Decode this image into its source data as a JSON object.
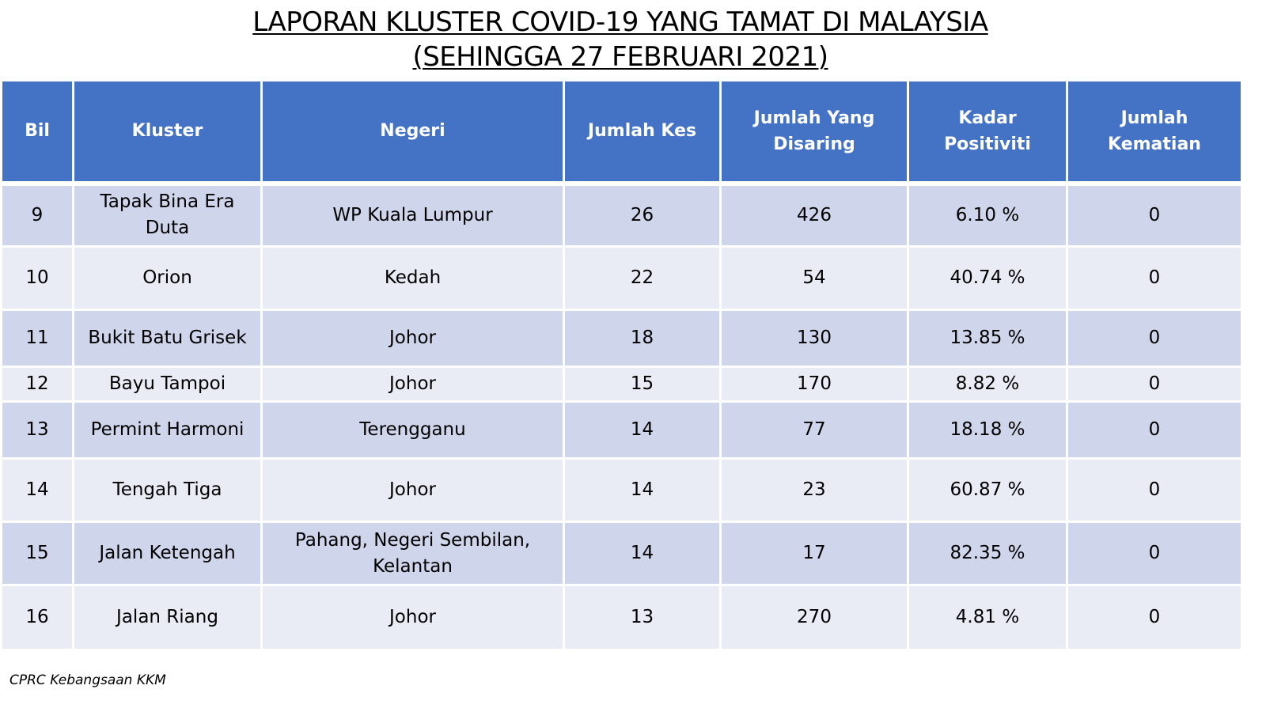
{
  "title": {
    "line1": "LAPORAN KLUSTER COVID-19 YANG TAMAT DI MALAYSIA",
    "line2": "(SEHINGGA  27 FEBRUARI 2021)"
  },
  "table": {
    "headers": [
      "Bil",
      "Kluster",
      "Negeri",
      "Jumlah Kes",
      "Jumlah Yang Disaring",
      "Kadar Positiviti",
      "Jumlah Kematian"
    ],
    "rows": [
      [
        "9",
        "Tapak Bina Era Duta",
        "WP Kuala Lumpur",
        "26",
        "426",
        "6.10 %",
        "0"
      ],
      [
        "10",
        "Orion",
        "Kedah",
        "22",
        "54",
        "40.74 %",
        "0"
      ],
      [
        "11",
        "Bukit Batu Grisek",
        "Johor",
        "18",
        "130",
        "13.85 %",
        "0"
      ],
      [
        "12",
        "Bayu Tampoi",
        "Johor",
        "15",
        "170",
        "8.82 %",
        "0"
      ],
      [
        "13",
        "Permint Harmoni",
        "Terengganu",
        "14",
        "77",
        "18.18 %",
        "0"
      ],
      [
        "14",
        "Tengah Tiga",
        "Johor",
        "14",
        "23",
        "60.87 %",
        "0"
      ],
      [
        "15",
        "Jalan Ketengah",
        "Pahang, Negeri Sembilan, Kelantan",
        "14",
        "17",
        "82.35 %",
        "0"
      ],
      [
        "16",
        "Jalan Riang",
        "Johor",
        "13",
        "270",
        "4.81 %",
        "0"
      ]
    ]
  },
  "footer": {
    "source": "CPRC Kebangsaan KKM"
  },
  "colors": {
    "header_bg": "#4472c4",
    "row_odd_bg": "#cfd5ea",
    "row_even_bg": "#e9ebf5"
  }
}
